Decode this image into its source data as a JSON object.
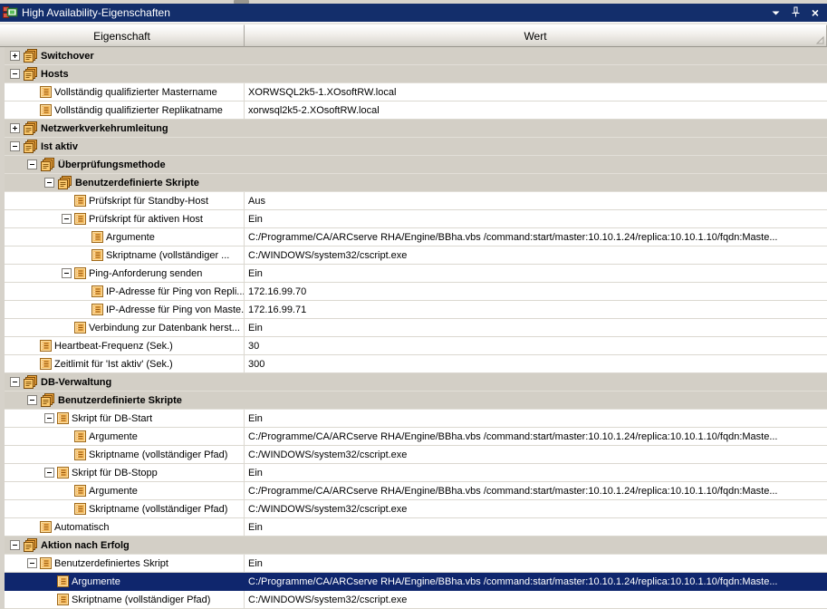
{
  "window": {
    "title": "High Availability-Eigenschaften"
  },
  "icons": {
    "titlebar_app": "red-green-properties-icon",
    "menu": "chevron-down",
    "pin": "push-pin-docked",
    "close": "x",
    "group_row": "orange-stacked-pages",
    "leaf_row": "orange-list-page",
    "header_corner": "small-gray-triangle"
  },
  "colors": {
    "titlebar_bg": "#132e6b",
    "selection_bg": "#0f266d",
    "group_row_bg": "#d3cfc6",
    "icon_orange": "#f5b04c",
    "header_gradient_bottom": "#d2cfc8"
  },
  "header": {
    "property_col": "Eigenschaft",
    "value_col": "Wert"
  },
  "tree": {
    "rows": [
      {
        "level": 0,
        "kind": "group",
        "toggle": "+",
        "label": "Switchover",
        "value": ""
      },
      {
        "level": 0,
        "kind": "group",
        "toggle": "-",
        "label": "Hosts",
        "value": ""
      },
      {
        "level": 1,
        "kind": "leaf",
        "toggle": "",
        "label": "Vollständig qualifizierter Mastername",
        "value": "XORWSQL2k5-1.XOsoftRW.local"
      },
      {
        "level": 1,
        "kind": "leaf",
        "toggle": "",
        "label": "Vollständig qualifizierter Replikatname",
        "value": "xorwsql2k5-2.XOsoftRW.local"
      },
      {
        "level": 0,
        "kind": "group",
        "toggle": "+",
        "label": "Netzwerkverkehrumleitung",
        "value": ""
      },
      {
        "level": 0,
        "kind": "group",
        "toggle": "-",
        "label": "Ist aktiv",
        "value": ""
      },
      {
        "level": 1,
        "kind": "group",
        "toggle": "-",
        "label": "Überprüfungsmethode",
        "value": ""
      },
      {
        "level": 2,
        "kind": "group",
        "toggle": "-",
        "label": "Benutzerdefinierte Skripte",
        "value": ""
      },
      {
        "level": 3,
        "kind": "leaf",
        "toggle": "",
        "label": "Prüfskript für Standby-Host",
        "value": "Aus"
      },
      {
        "level": 3,
        "kind": "leaf",
        "toggle": "-",
        "label": "Prüfskript für aktiven Host",
        "value": "Ein"
      },
      {
        "level": 4,
        "kind": "leaf",
        "toggle": "",
        "label": "Argumente",
        "value": "C:/Programme/CA/ARCserve RHA/Engine/BBha.vbs /command:start/master:10.10.1.24/replica:10.10.1.10/fqdn:Maste..."
      },
      {
        "level": 4,
        "kind": "leaf",
        "toggle": "",
        "label": "Skriptname (vollständiger ...",
        "value": "C:/WINDOWS/system32/cscript.exe"
      },
      {
        "level": 3,
        "kind": "leaf",
        "toggle": "-",
        "label": "Ping-Anforderung senden",
        "value": "Ein"
      },
      {
        "level": 4,
        "kind": "leaf",
        "toggle": "",
        "label": "IP-Adresse für Ping von Repli...",
        "value": "172.16.99.70"
      },
      {
        "level": 4,
        "kind": "leaf",
        "toggle": "",
        "label": "IP-Adresse für Ping von Maste...",
        "value": "172.16.99.71"
      },
      {
        "level": 3,
        "kind": "leaf",
        "toggle": "",
        "label": "Verbindung zur Datenbank herst...",
        "value": "Ein"
      },
      {
        "level": 1,
        "kind": "leaf",
        "toggle": "",
        "label": "Heartbeat-Frequenz (Sek.)",
        "value": "30"
      },
      {
        "level": 1,
        "kind": "leaf",
        "toggle": "",
        "label": "Zeitlimit für 'Ist aktiv' (Sek.)",
        "value": "300"
      },
      {
        "level": 0,
        "kind": "group",
        "toggle": "-",
        "label": "DB-Verwaltung",
        "value": ""
      },
      {
        "level": 1,
        "kind": "group",
        "toggle": "-",
        "label": "Benutzerdefinierte Skripte",
        "value": ""
      },
      {
        "level": 2,
        "kind": "leaf",
        "toggle": "-",
        "label": "Skript für DB-Start",
        "value": "Ein"
      },
      {
        "level": 3,
        "kind": "leaf",
        "toggle": "",
        "label": "Argumente",
        "value": "C:/Programme/CA/ARCserve RHA/Engine/BBha.vbs /command:start/master:10.10.1.24/replica:10.10.1.10/fqdn:Maste..."
      },
      {
        "level": 3,
        "kind": "leaf",
        "toggle": "",
        "label": "Skriptname (vollständiger Pfad)",
        "value": "C:/WINDOWS/system32/cscript.exe"
      },
      {
        "level": 2,
        "kind": "leaf",
        "toggle": "-",
        "label": "Skript für DB-Stopp",
        "value": "Ein"
      },
      {
        "level": 3,
        "kind": "leaf",
        "toggle": "",
        "label": "Argumente",
        "value": "C:/Programme/CA/ARCserve RHA/Engine/BBha.vbs /command:start/master:10.10.1.24/replica:10.10.1.10/fqdn:Maste..."
      },
      {
        "level": 3,
        "kind": "leaf",
        "toggle": "",
        "label": "Skriptname (vollständiger Pfad)",
        "value": "C:/WINDOWS/system32/cscript.exe"
      },
      {
        "level": 1,
        "kind": "leaf",
        "toggle": "",
        "label": "Automatisch",
        "value": "Ein"
      },
      {
        "level": 0,
        "kind": "group",
        "toggle": "-",
        "label": "Aktion nach Erfolg",
        "value": ""
      },
      {
        "level": 1,
        "kind": "leaf",
        "toggle": "-",
        "label": "Benutzerdefiniertes Skript",
        "value": "Ein"
      },
      {
        "level": 2,
        "kind": "leaf",
        "toggle": "",
        "label": "Argumente",
        "value": "C:/Programme/CA/ARCserve RHA/Engine/BBha.vbs /command:start/master:10.10.1.24/replica:10.10.1.10/fqdn:Maste...",
        "selected": true
      },
      {
        "level": 2,
        "kind": "leaf",
        "toggle": "",
        "label": "Skriptname (vollständiger Pfad)",
        "value": "C:/WINDOWS/system32/cscript.exe"
      }
    ]
  }
}
